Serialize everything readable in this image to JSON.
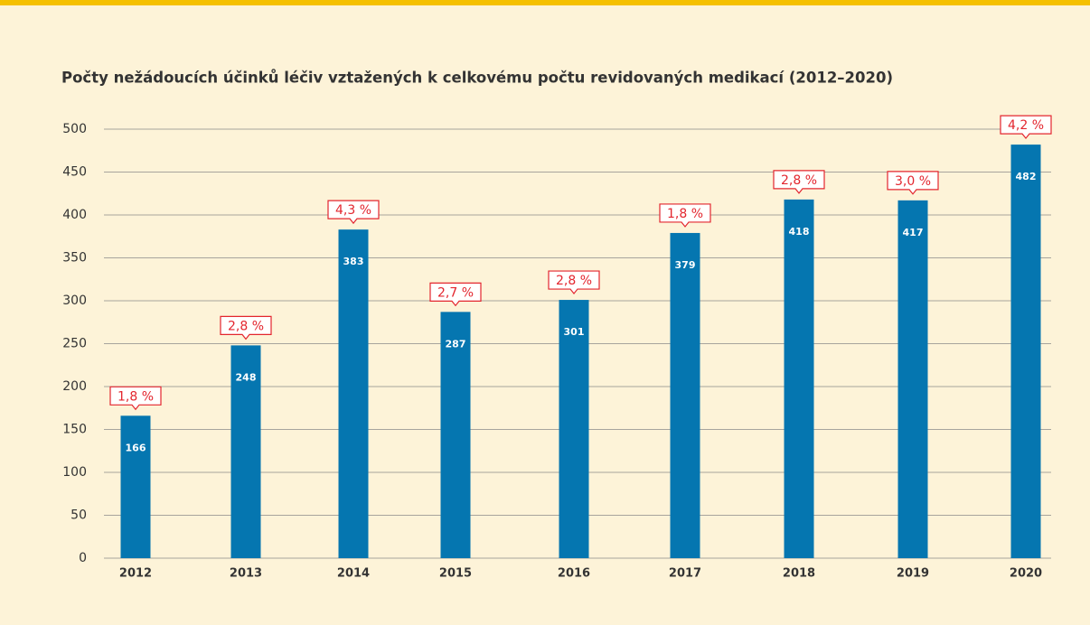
{
  "chart_data": {
    "type": "bar",
    "title": "Počty nežádoucích účinků léčiv vztažených k celkovému počtu revidovaných medikací (2012–2020)",
    "categories": [
      "2012",
      "2013",
      "2014",
      "2015",
      "2016",
      "2017",
      "2018",
      "2019",
      "2020"
    ],
    "values": [
      166,
      248,
      383,
      287,
      301,
      379,
      418,
      417,
      482
    ],
    "annotations": [
      "1,8 %",
      "2,8 %",
      "4,3 %",
      "2,7 %",
      "2,8 %",
      "1,8 %",
      "2,8 %",
      "3,0 %",
      "4,2 %"
    ],
    "color": "#0576b0",
    "annotation_color": "#e3262e",
    "ylim": [
      0,
      500
    ],
    "yticks": [
      0,
      50,
      100,
      150,
      200,
      250,
      300,
      350,
      400,
      450,
      500
    ],
    "grid": true
  }
}
